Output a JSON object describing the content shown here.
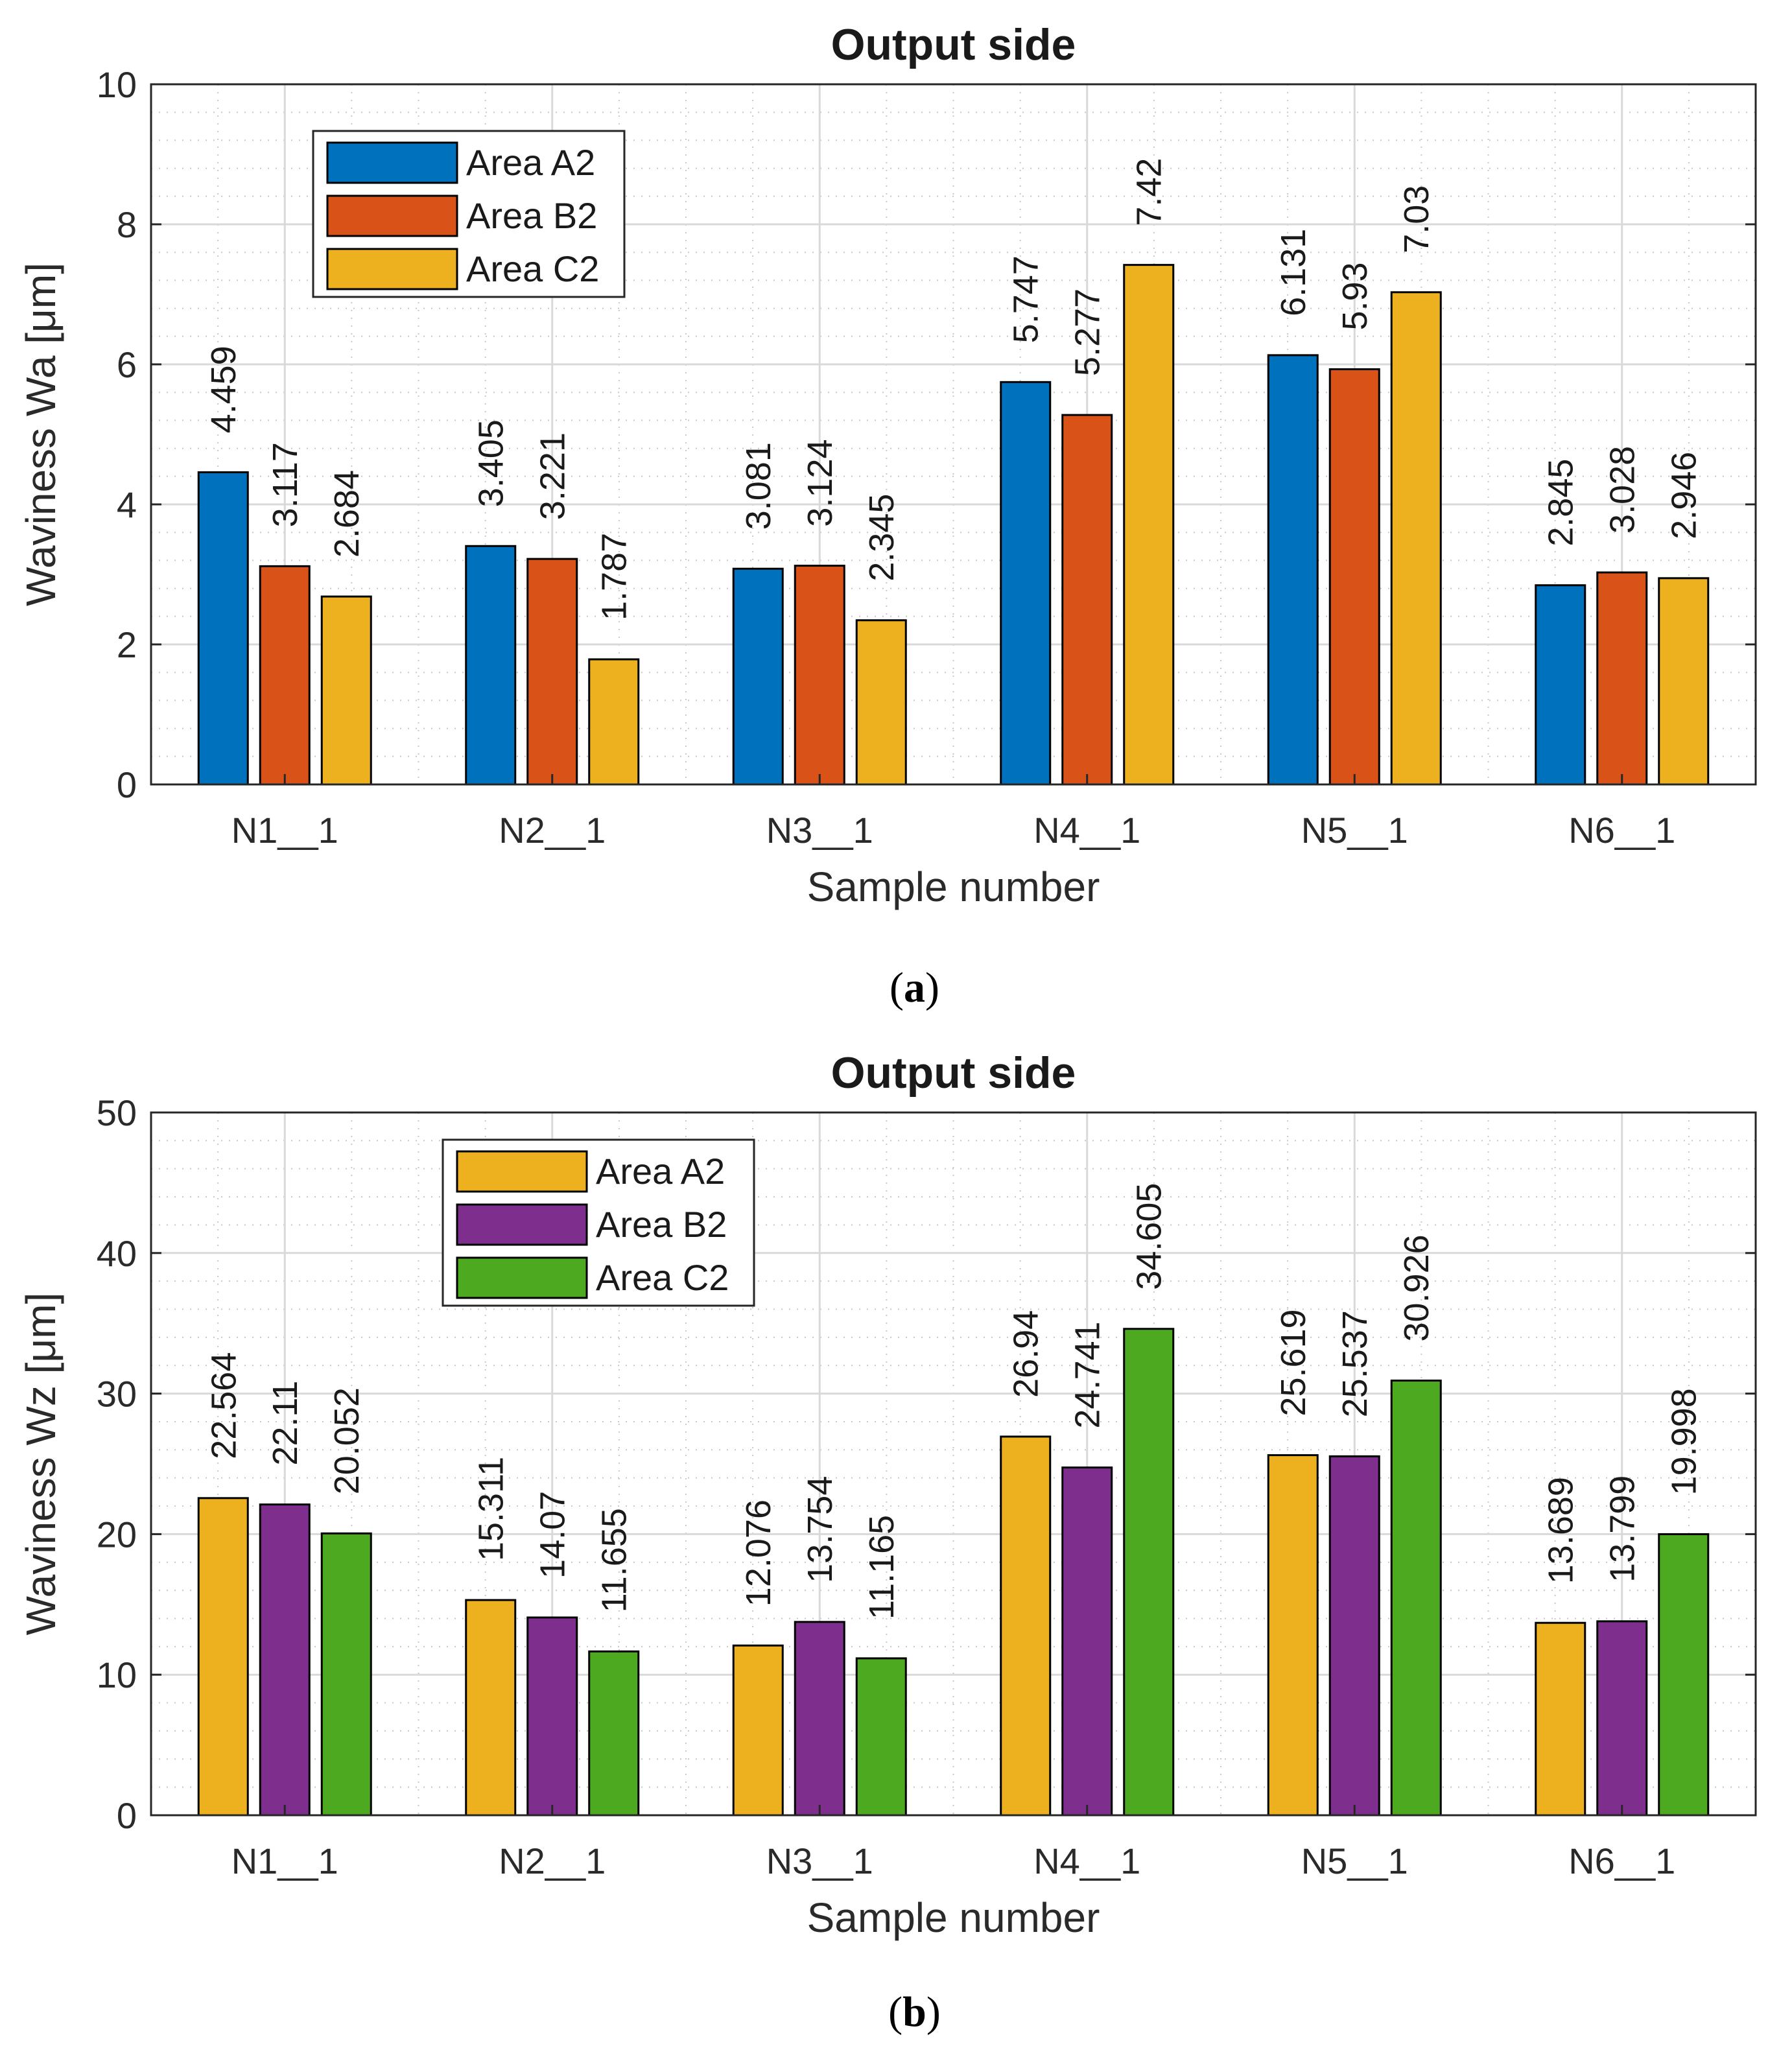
{
  "chart_data": [
    {
      "type": "bar",
      "title": "Output side",
      "xlabel": "Sample number",
      "ylabel": "Waviness Wa [μm]",
      "ylim": [
        0,
        10
      ],
      "yticks": [
        0,
        2,
        4,
        6,
        8,
        10
      ],
      "minor_ytick_step": 0.4,
      "grid": true,
      "legend_position": "top-left",
      "categories": [
        "N1__1",
        "N2__1",
        "N3__1",
        "N4__1",
        "N5__1",
        "N6__1"
      ],
      "series": [
        {
          "name": "Area A2",
          "color": "#0072BD",
          "values": [
            4.459,
            3.405,
            3.081,
            5.747,
            6.131,
            2.845
          ],
          "labels": [
            "4.459",
            "3.405",
            "3.081",
            "5.747",
            "6.131",
            "2.845"
          ]
        },
        {
          "name": "Area B2",
          "color": "#D95319",
          "values": [
            3.117,
            3.221,
            3.124,
            5.277,
            5.93,
            3.028
          ],
          "labels": [
            "3.117",
            "3.221",
            "3.124",
            "5.277",
            "5.93",
            "3.028"
          ]
        },
        {
          "name": "Area C2",
          "color": "#EDB120",
          "values": [
            2.684,
            1.787,
            2.345,
            7.42,
            7.03,
            2.946
          ],
          "labels": [
            "2.684",
            "1.787",
            "2.345",
            "7.42",
            "7.03",
            "2.946"
          ]
        }
      ],
      "caption_letter": "a"
    },
    {
      "type": "bar",
      "title": "Output side",
      "xlabel": "Sample number",
      "ylabel": "Waviness Wz [μm]",
      "ylim": [
        0,
        50
      ],
      "yticks": [
        0,
        10,
        20,
        30,
        40,
        50
      ],
      "minor_ytick_step": 2,
      "grid": true,
      "legend_position": "top-left",
      "categories": [
        "N1__1",
        "N2__1",
        "N3__1",
        "N4__1",
        "N5__1",
        "N6__1"
      ],
      "series": [
        {
          "name": "Area A2",
          "color": "#EDB120",
          "values": [
            22.564,
            15.311,
            12.076,
            26.94,
            25.619,
            13.689
          ],
          "labels": [
            "22.564",
            "15.311",
            "12.076",
            "26.94",
            "25.619",
            "13.689"
          ]
        },
        {
          "name": "Area B2",
          "color": "#7E2F8E",
          "values": [
            22.11,
            14.07,
            13.754,
            24.741,
            25.537,
            13.799
          ],
          "labels": [
            "22.11",
            "14.07",
            "13.754",
            "24.741",
            "25.537",
            "13.799"
          ]
        },
        {
          "name": "Area C2",
          "color": "#4DAA20",
          "values": [
            20.052,
            11.655,
            11.165,
            34.605,
            30.926,
            19.998
          ],
          "labels": [
            "20.052",
            "11.655",
            "11.165",
            "34.605",
            "30.926",
            "19.998"
          ]
        }
      ],
      "caption_letter": "b"
    }
  ]
}
